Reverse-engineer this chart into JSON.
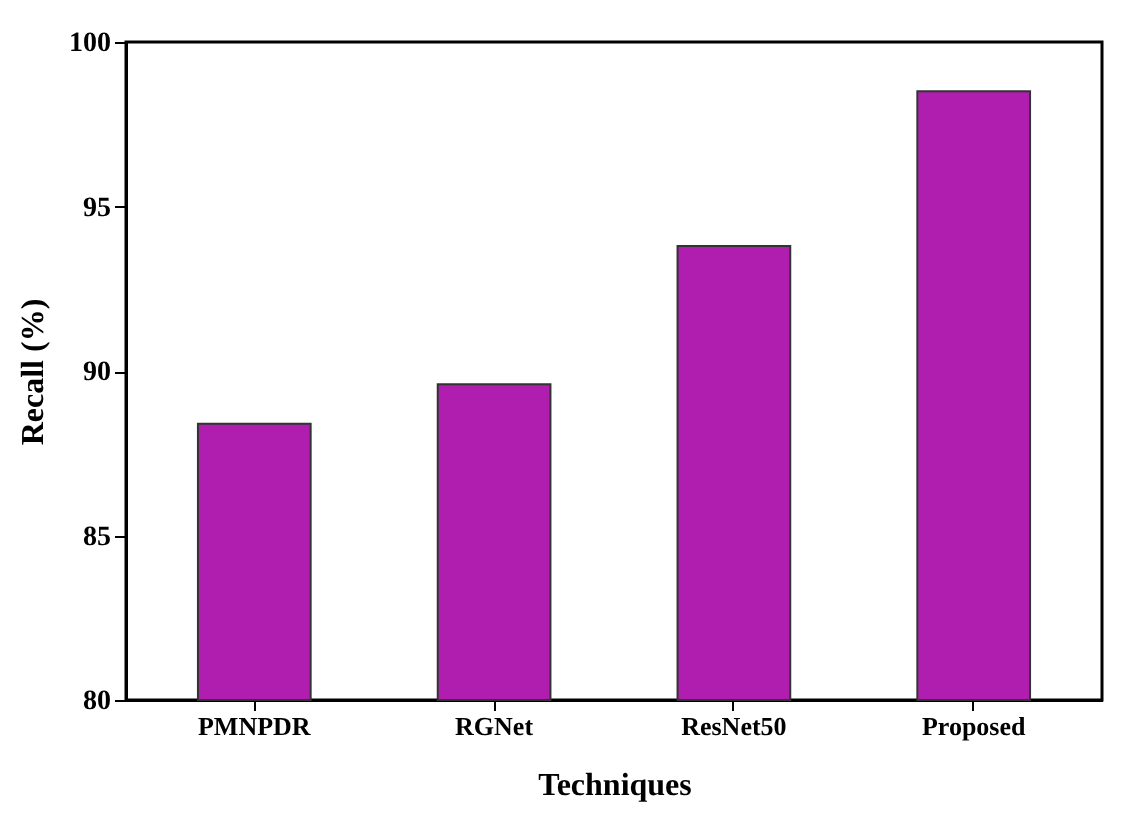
{
  "chart_data": {
    "type": "bar",
    "xlabel": "Techniques",
    "ylabel": "Recall (%)",
    "categories": [
      "PMNPDR",
      "RGNet",
      "ResNet50",
      "Proposed"
    ],
    "values": [
      88.4,
      89.6,
      93.8,
      98.5
    ],
    "color": "#b01eb0",
    "ylim": [
      80,
      100
    ],
    "yticks": [
      80,
      85,
      90,
      95,
      100
    ],
    "grid": false
  }
}
